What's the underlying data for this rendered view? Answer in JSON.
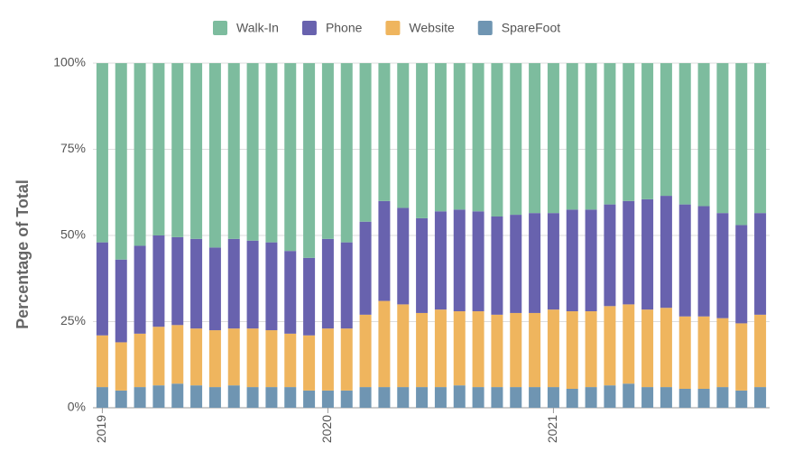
{
  "chart_data": {
    "type": "stacked_bar",
    "ylabel": "Percentage of Total",
    "categories": [
      "2019",
      null,
      null,
      null,
      null,
      null,
      null,
      null,
      null,
      null,
      null,
      null,
      "2020",
      null,
      null,
      null,
      null,
      null,
      null,
      null,
      null,
      null,
      null,
      null,
      "2021",
      null,
      null,
      null,
      null,
      null,
      null,
      null,
      null,
      null,
      null,
      null
    ],
    "series": [
      {
        "name": "Walk-In",
        "color": "#7dbc9e",
        "values": [
          52,
          57,
          53,
          50,
          50.5,
          51,
          53.5,
          51,
          51.5,
          52,
          54.5,
          56.5,
          51,
          52,
          46,
          40,
          42,
          45,
          43,
          42.5,
          43,
          44.5,
          44,
          43.5,
          43.5,
          42.5,
          42.5,
          41,
          40,
          39.5,
          38.5,
          41,
          41.5,
          43.5,
          47,
          43.5
        ]
      },
      {
        "name": "Phone",
        "color": "#6862ae",
        "values": [
          27,
          24,
          25.5,
          26.5,
          25.5,
          26,
          24,
          26,
          25.5,
          25.5,
          24,
          22.5,
          26,
          25,
          27,
          29,
          28,
          27.5,
          28.5,
          29.5,
          29,
          28.5,
          28.5,
          29,
          28,
          29.5,
          29.5,
          29.5,
          30,
          32,
          32.5,
          32.5,
          32,
          30.5,
          28.5,
          29.5
        ]
      },
      {
        "name": "Website",
        "color": "#efb55e",
        "values": [
          15,
          14,
          15.5,
          17,
          17,
          16.5,
          16.5,
          16.5,
          17,
          16.5,
          15.5,
          16,
          18,
          18,
          21,
          25,
          24,
          21.5,
          22.5,
          21.5,
          22,
          21,
          21.5,
          21.5,
          22.5,
          22.5,
          22,
          23,
          23,
          22.5,
          23,
          21,
          21,
          20,
          19.5,
          21
        ]
      },
      {
        "name": "SpareFoot",
        "color": "#6f95b2",
        "values": [
          6,
          5,
          6,
          6.5,
          7,
          6.5,
          6,
          6.5,
          6,
          6,
          6,
          5,
          5,
          5,
          6,
          6,
          6,
          6,
          6,
          6.5,
          6,
          6,
          6,
          6,
          6,
          5.5,
          6,
          6.5,
          7,
          6,
          6,
          5.5,
          5.5,
          6,
          5,
          6
        ]
      }
    ],
    "ylim": [
      0,
      100
    ],
    "yticks": [
      {
        "value": 0,
        "label": "0%"
      },
      {
        "value": 25,
        "label": "25%"
      },
      {
        "value": 50,
        "label": "50%"
      },
      {
        "value": 75,
        "label": "75%"
      },
      {
        "value": 100,
        "label": "100%"
      }
    ],
    "grid": true,
    "legend": "top"
  }
}
